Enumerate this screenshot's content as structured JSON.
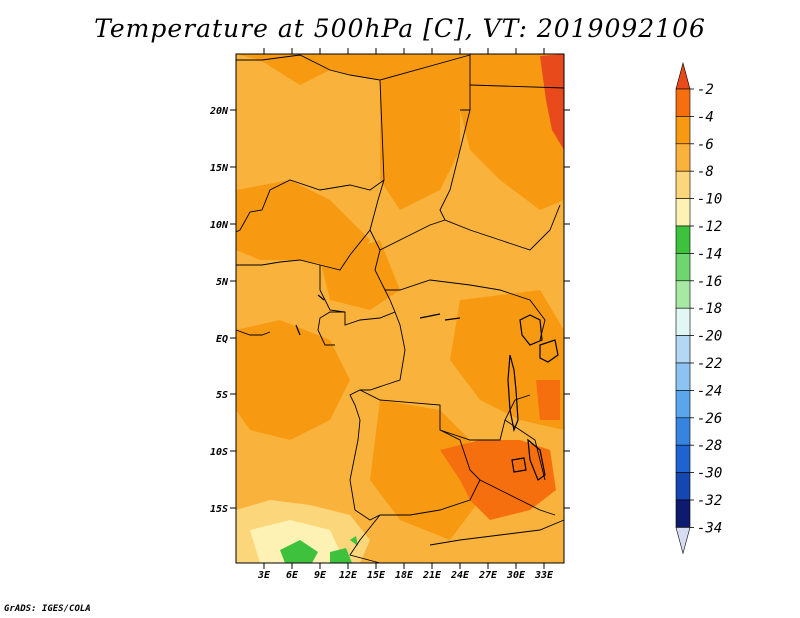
{
  "title": "Temperature at 500hPa [C], VT: 2019092106",
  "credit": "GrADS: IGES/COLA",
  "map": {
    "lat_ticks": [
      "20N",
      "15N",
      "10N",
      "5N",
      "EQ",
      "5S",
      "10S",
      "15S"
    ],
    "lon_ticks": [
      "3E",
      "6E",
      "9E",
      "12E",
      "15E",
      "18E",
      "21E",
      "24E",
      "27E",
      "30E",
      "33E"
    ]
  },
  "colorbar": {
    "labels": [
      "-2",
      "-4",
      "-6",
      "-8",
      "-10",
      "-12",
      "-14",
      "-16",
      "-18",
      "-20",
      "-22",
      "-24",
      "-26",
      "-28",
      "-30",
      "-32",
      "-34"
    ],
    "colors": [
      "#e84a1c",
      "#f56f0f",
      "#f79a12",
      "#f9b23c",
      "#fcd67a",
      "#fdf2b3",
      "#3ec23e",
      "#6fd66f",
      "#a7e8a3",
      "#e0f7f4",
      "#b2d8f5",
      "#8cc3f2",
      "#5aa5ec",
      "#3684e0",
      "#1e64d0",
      "#1448b0",
      "#0d1a6e",
      "#d6dcf3"
    ]
  }
}
